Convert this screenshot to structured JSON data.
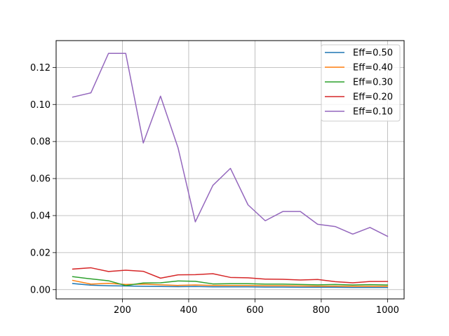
{
  "chart_data": {
    "type": "line",
    "title": "",
    "xlabel": "",
    "ylabel": "",
    "xlim": [
      0,
      1050
    ],
    "ylim": [
      -0.005,
      0.1345
    ],
    "grid": true,
    "legend_position": "top-right",
    "x_ticks": [
      200,
      400,
      600,
      800,
      1000
    ],
    "x_tick_labels": [
      "200",
      "400",
      "600",
      "800",
      "1000"
    ],
    "y_ticks": [
      0.0,
      0.02,
      0.04,
      0.06,
      0.08,
      0.1,
      0.12
    ],
    "y_tick_labels": [
      "0.00",
      "0.02",
      "0.04",
      "0.06",
      "0.08",
      "0.10",
      "0.12"
    ],
    "x": [
      50,
      105,
      158,
      210,
      263,
      315,
      368,
      420,
      473,
      526,
      579,
      631,
      684,
      737,
      789,
      842,
      895,
      947,
      1000
    ],
    "series": [
      {
        "name": "Eff=0.50",
        "color": "#1f77b4",
        "values": [
          0.0033,
          0.0024,
          0.0021,
          0.002,
          0.0018,
          0.0017,
          0.0016,
          0.0017,
          0.0015,
          0.0015,
          0.0015,
          0.0014,
          0.0014,
          0.0013,
          0.0013,
          0.0013,
          0.0012,
          0.0012,
          0.0012
        ]
      },
      {
        "name": "Eff=0.40",
        "color": "#ff7f0e",
        "values": [
          0.005,
          0.003,
          0.0034,
          0.0028,
          0.003,
          0.0026,
          0.0023,
          0.0025,
          0.0023,
          0.0023,
          0.0023,
          0.0021,
          0.0021,
          0.002,
          0.0019,
          0.0019,
          0.0018,
          0.0018,
          0.0018
        ]
      },
      {
        "name": "Eff=0.30",
        "color": "#2ca02c",
        "values": [
          0.007,
          0.0058,
          0.0048,
          0.0022,
          0.0036,
          0.0037,
          0.0047,
          0.0045,
          0.0031,
          0.0032,
          0.0032,
          0.003,
          0.003,
          0.0028,
          0.0026,
          0.0028,
          0.0025,
          0.0027,
          0.0025
        ]
      },
      {
        "name": "Eff=0.20",
        "color": "#d62728",
        "values": [
          0.0111,
          0.0118,
          0.0098,
          0.0105,
          0.0099,
          0.0062,
          0.008,
          0.0081,
          0.0086,
          0.0066,
          0.0064,
          0.0057,
          0.0056,
          0.0052,
          0.0055,
          0.0043,
          0.0037,
          0.0044,
          0.0044
        ]
      },
      {
        "name": "Eff=0.10",
        "color": "#9467bd",
        "values": [
          0.104,
          0.1063,
          0.1276,
          0.1276,
          0.0792,
          0.1045,
          0.0765,
          0.0366,
          0.0563,
          0.0655,
          0.0458,
          0.0372,
          0.0422,
          0.0422,
          0.0353,
          0.0341,
          0.03,
          0.0336,
          0.0288
        ]
      }
    ]
  }
}
